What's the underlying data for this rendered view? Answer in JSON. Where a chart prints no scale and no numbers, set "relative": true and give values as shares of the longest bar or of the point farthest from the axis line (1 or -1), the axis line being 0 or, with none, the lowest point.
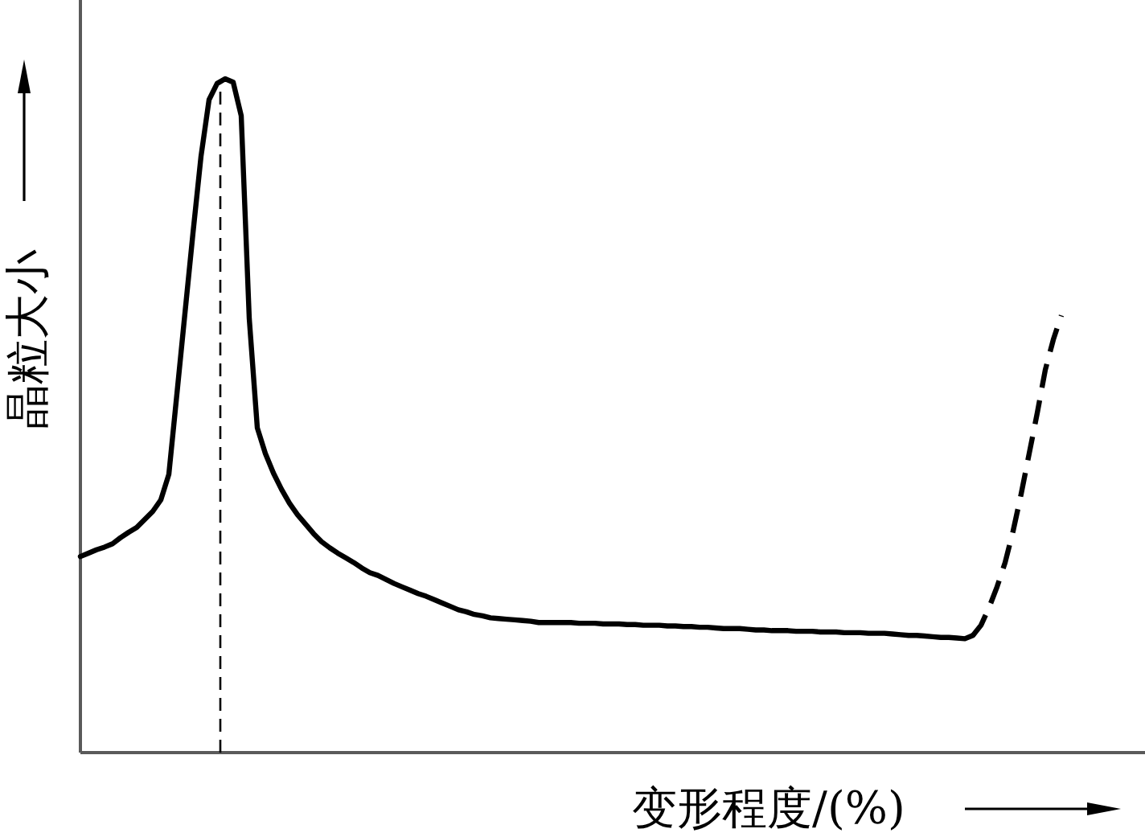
{
  "chart_data": {
    "type": "line",
    "xlabel": "变形程度/(%)",
    "ylabel": "晶粒大小",
    "relative": true,
    "categories": [
      null,
      null,
      null,
      null,
      null,
      null,
      null,
      null,
      null,
      null,
      null,
      null,
      null,
      null,
      null,
      null,
      null,
      null,
      null,
      null,
      null,
      null,
      null,
      null,
      null,
      null,
      null,
      null,
      null,
      null,
      null,
      null,
      null,
      null,
      null,
      null,
      null,
      null,
      null,
      null,
      null,
      null,
      null,
      null,
      null,
      null,
      null,
      null,
      null,
      null,
      null,
      null,
      null,
      null,
      null,
      null,
      null,
      null,
      null,
      null,
      null,
      null,
      null,
      null,
      null,
      null,
      null,
      null,
      null,
      null,
      null,
      null,
      null,
      null,
      null,
      null,
      null,
      null,
      null,
      null,
      null,
      null,
      null,
      null,
      null,
      null,
      null,
      null,
      null,
      null,
      null,
      null,
      null,
      null,
      null,
      null,
      null,
      null,
      null,
      null,
      null,
      null,
      null,
      null,
      null,
      null,
      null,
      null,
      null,
      null,
      null,
      null,
      null,
      null,
      null,
      null,
      null,
      null,
      null,
      null,
      null,
      null,
      null
    ],
    "series": [
      {
        "color": "#000000",
        "line_style": "solid",
        "values": [
          0.291,
          0.296,
          0.301,
          0.305,
          0.31,
          0.319,
          0.327,
          0.334,
          0.346,
          0.358,
          0.375,
          0.413,
          0.532,
          0.652,
          0.771,
          0.885,
          0.969,
          0.993,
          1.0,
          0.995,
          0.945,
          0.644,
          0.482,
          0.444,
          0.415,
          0.391,
          0.37,
          0.353,
          0.339,
          0.325,
          0.313,
          0.304,
          0.296,
          0.289,
          0.282,
          0.274,
          0.267,
          0.263,
          0.257,
          0.251,
          0.246,
          0.241,
          0.236,
          0.232,
          0.227,
          0.222,
          0.217,
          0.212,
          0.209,
          0.205,
          0.203,
          0.2,
          0.199,
          0.198,
          0.197,
          0.196,
          0.195,
          0.193,
          0.193,
          0.193,
          0.193,
          0.193,
          0.192,
          0.192,
          0.192,
          0.191,
          0.191,
          0.191,
          0.19,
          0.19,
          0.189,
          0.189,
          0.189,
          0.188,
          0.188,
          0.187,
          0.187,
          0.186,
          0.186,
          0.185,
          0.184,
          0.184,
          0.184,
          0.183,
          0.182,
          0.182,
          0.181,
          0.181,
          0.181,
          0.18,
          0.18,
          0.18,
          0.179,
          0.179,
          0.179,
          0.178,
          0.178,
          0.178,
          0.177,
          0.177,
          0.177,
          0.176,
          0.175,
          0.174,
          0.174,
          0.173,
          0.172,
          0.171,
          0.171,
          0.17,
          0.169,
          0.174,
          null,
          null,
          null,
          null,
          null,
          null,
          null,
          null,
          null,
          null,
          null
        ]
      },
      {
        "color": "#000000",
        "line_style": "dashed",
        "values": [
          null,
          null,
          null,
          null,
          null,
          null,
          null,
          null,
          null,
          null,
          null,
          null,
          null,
          null,
          null,
          null,
          null,
          null,
          null,
          null,
          null,
          null,
          null,
          null,
          null,
          null,
          null,
          null,
          null,
          null,
          null,
          null,
          null,
          null,
          null,
          null,
          null,
          null,
          null,
          null,
          null,
          null,
          null,
          null,
          null,
          null,
          null,
          null,
          null,
          null,
          null,
          null,
          null,
          null,
          null,
          null,
          null,
          null,
          null,
          null,
          null,
          null,
          null,
          null,
          null,
          null,
          null,
          null,
          null,
          null,
          null,
          null,
          null,
          null,
          null,
          null,
          null,
          null,
          null,
          null,
          null,
          null,
          null,
          null,
          null,
          null,
          null,
          null,
          null,
          null,
          null,
          null,
          null,
          null,
          null,
          null,
          null,
          null,
          null,
          null,
          null,
          null,
          null,
          null,
          null,
          null,
          null,
          null,
          null,
          null,
          null,
          0.174,
          0.189,
          0.215,
          0.246,
          0.282,
          0.329,
          0.384,
          0.444,
          0.504,
          0.568,
          0.613,
          0.649
        ]
      }
    ]
  }
}
